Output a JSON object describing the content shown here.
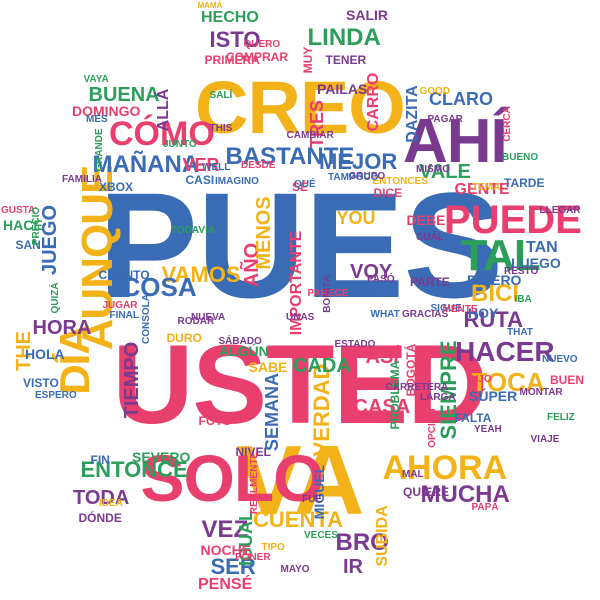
{
  "palette": {
    "blue": "#3a6bb5",
    "pink": "#e93f6e",
    "yellow": "#f2b218",
    "green": "#2b9e5a",
    "purple": "#7a3a8f"
  },
  "words": [
    {
      "text": "PUES",
      "color": "blue"
    },
    {
      "text": "USTED",
      "color": "pink"
    },
    {
      "text": "CREO",
      "color": "yellow"
    },
    {
      "text": "VA",
      "color": "yellow"
    },
    {
      "text": "SOLO",
      "color": "pink"
    },
    {
      "text": "AHÍ",
      "color": "purple"
    },
    {
      "text": "PUEDE",
      "color": "pink"
    },
    {
      "text": "TAL",
      "color": "green"
    },
    {
      "text": "CÓMO",
      "color": "pink"
    },
    {
      "text": "AUNQUE",
      "color": "yellow"
    },
    {
      "text": "DÍA",
      "color": "yellow"
    },
    {
      "text": "AHORA",
      "color": "yellow"
    },
    {
      "text": "HACER",
      "color": "purple"
    },
    {
      "text": "TOCA",
      "color": "yellow"
    },
    {
      "text": "SIEMPRE",
      "color": "green"
    },
    {
      "text": "BASTANTE",
      "color": "blue"
    },
    {
      "text": "MEJOR",
      "color": "blue"
    },
    {
      "text": "MAÑANA",
      "color": "blue"
    },
    {
      "text": "ENTONCE",
      "color": "green"
    },
    {
      "text": "MUCHA",
      "color": "purple"
    },
    {
      "text": "CUENTA",
      "color": "yellow"
    },
    {
      "text": "LINDA",
      "color": "green"
    },
    {
      "text": "ISTO",
      "color": "purple"
    },
    {
      "text": "HECHO",
      "color": "green"
    },
    {
      "text": "BUENA",
      "color": "green"
    },
    {
      "text": "JUEGO",
      "color": "blue"
    },
    {
      "text": "VAMOS",
      "color": "yellow"
    },
    {
      "text": "COSA",
      "color": "blue"
    },
    {
      "text": "HORA",
      "color": "purple"
    },
    {
      "text": "VERDAD",
      "color": "yellow"
    },
    {
      "text": "SEMANA",
      "color": "blue"
    },
    {
      "text": "TIEMPO",
      "color": "purple"
    },
    {
      "text": "VEZ",
      "color": "purple"
    },
    {
      "text": "BRO",
      "color": "purple"
    },
    {
      "text": "SER",
      "color": "blue"
    },
    {
      "text": "IR",
      "color": "purple"
    },
    {
      "text": "TODA",
      "color": "purple"
    },
    {
      "text": "VOY",
      "color": "purple"
    },
    {
      "text": "RUTA",
      "color": "purple"
    },
    {
      "text": "BICI",
      "color": "yellow"
    },
    {
      "text": "VALE",
      "color": "green"
    },
    {
      "text": "CLARO",
      "color": "blue"
    },
    {
      "text": "DAZITA",
      "color": "blue"
    },
    {
      "text": "CASA",
      "color": "pink"
    },
    {
      "text": "CADA",
      "color": "green"
    },
    {
      "text": "AÑO",
      "color": "pink"
    },
    {
      "text": "YOU",
      "color": "yellow"
    },
    {
      "text": "VER",
      "color": "pink"
    },
    {
      "text": "ALLÁ",
      "color": "purple"
    },
    {
      "text": "THE",
      "color": "yellow"
    },
    {
      "text": "IGUAL",
      "color": "green"
    },
    {
      "text": "SUBIDA",
      "color": "yellow"
    },
    {
      "text": "MENOS",
      "color": "yellow"
    },
    {
      "text": "ASÍ",
      "color": "pink"
    },
    {
      "text": "GENTE",
      "color": "pink"
    },
    {
      "text": "HOY",
      "color": "blue"
    },
    {
      "text": "SÚPER",
      "color": "blue"
    },
    {
      "text": "TAN",
      "color": "blue"
    },
    {
      "text": "DINERO",
      "color": "blue"
    },
    {
      "text": "MIGUEL",
      "color": "blue"
    },
    {
      "text": "TRES",
      "color": "pink"
    },
    {
      "text": "SALIR",
      "color": "purple"
    },
    {
      "text": "CARRO",
      "color": "pink"
    },
    {
      "text": "PAILAS",
      "color": "purple"
    },
    {
      "text": "IMPORTANTE",
      "color": "pink"
    },
    {
      "text": "DEBE",
      "color": "pink"
    },
    {
      "text": "LUEGO",
      "color": "blue"
    },
    {
      "text": "HACE",
      "color": "green"
    },
    {
      "text": "HOLA",
      "color": "blue"
    },
    {
      "text": "VISTO",
      "color": "blue"
    },
    {
      "text": "DOMINGO",
      "color": "pink"
    },
    {
      "text": "PENSÉ",
      "color": "pink"
    },
    {
      "text": "CASI",
      "color": "blue"
    },
    {
      "text": "XBOX",
      "color": "blue"
    },
    {
      "text": "SÉ",
      "color": "pink"
    },
    {
      "text": "QUIERE",
      "color": "purple"
    },
    {
      "text": "DICE",
      "color": "pink"
    },
    {
      "text": "FALTA",
      "color": "blue"
    },
    {
      "text": "SABE",
      "color": "yellow"
    },
    {
      "text": "ALGÚN",
      "color": "green"
    },
    {
      "text": "PARTE",
      "color": "purple"
    },
    {
      "text": "TARDE",
      "color": "blue"
    },
    {
      "text": "CUÁNTO",
      "color": "blue"
    },
    {
      "text": "DURO",
      "color": "yellow"
    },
    {
      "text": "FIN",
      "color": "blue"
    },
    {
      "text": "NOCHE",
      "color": "pink"
    },
    {
      "text": "GUSTA",
      "color": "pink"
    },
    {
      "text": "SAN",
      "color": "blue"
    },
    {
      "text": "DÓNDE",
      "color": "purple"
    },
    {
      "text": "BUEN",
      "color": "pink"
    },
    {
      "text": "SEVERO",
      "color": "green"
    },
    {
      "text": "MAMÁ",
      "color": "yellow"
    },
    {
      "text": "MISMO",
      "color": "purple"
    },
    {
      "text": "VIAJE",
      "color": "purple"
    },
    {
      "text": "BOGOTÁ",
      "color": "pink"
    },
    {
      "text": "PROBLEMA",
      "color": "green"
    },
    {
      "text": "ENTONCES",
      "color": "yellow"
    },
    {
      "text": "FOTO",
      "color": "pink"
    },
    {
      "text": "NIVEL",
      "color": "purple"
    },
    {
      "text": "MONTAR",
      "color": "purple"
    },
    {
      "text": "UNAS",
      "color": "purple"
    },
    {
      "text": "PAPÁ",
      "color": "pink"
    },
    {
      "text": "PRIMERA",
      "color": "pink"
    },
    {
      "text": "MAYO",
      "color": "purple"
    },
    {
      "text": "IBA",
      "color": "green"
    },
    {
      "text": "FELIZ",
      "color": "green"
    },
    {
      "text": "SIGUE",
      "color": "blue"
    },
    {
      "text": "MUY",
      "color": "pink"
    },
    {
      "text": "WHAT",
      "color": "blue"
    },
    {
      "text": "TENER",
      "color": "purple"
    },
    {
      "text": "COMPRAR",
      "color": "pink"
    },
    {
      "text": "GRUPO",
      "color": "purple"
    },
    {
      "text": "QUEDA",
      "color": "blue"
    },
    {
      "text": "RODAR",
      "color": "purple"
    },
    {
      "text": "LLEGAR",
      "color": "purple"
    },
    {
      "text": "YEAH",
      "color": "purple"
    },
    {
      "text": "SÁBADO",
      "color": "purple"
    },
    {
      "text": "NUEVA",
      "color": "purple"
    },
    {
      "text": "PRECIO",
      "color": "green"
    },
    {
      "text": "MES",
      "color": "blue"
    },
    {
      "text": "QUIZÁ",
      "color": "green"
    },
    {
      "text": "NUEVO",
      "color": "blue"
    },
    {
      "text": "FINAL",
      "color": "blue"
    },
    {
      "text": "FUE",
      "color": "purple"
    },
    {
      "text": "ESPERO",
      "color": "blue"
    },
    {
      "text": "TIPO",
      "color": "yellow"
    },
    {
      "text": "VECES",
      "color": "green"
    },
    {
      "text": "IDEA",
      "color": "yellow"
    },
    {
      "text": "RESTO",
      "color": "purple"
    },
    {
      "text": "QUERO",
      "color": "pink"
    },
    {
      "text": "PASÓ",
      "color": "purple"
    },
    {
      "text": "BUENO",
      "color": "green"
    },
    {
      "text": "TODAVÍA",
      "color": "green"
    },
    {
      "text": "CONSOLA",
      "color": "blue"
    },
    {
      "text": "PARECE",
      "color": "pink"
    },
    {
      "text": "CERCA",
      "color": "pink"
    },
    {
      "text": "THAT",
      "color": "blue"
    },
    {
      "text": "THIS",
      "color": "purple"
    },
    {
      "text": "JUGAR",
      "color": "pink"
    },
    {
      "text": "IMAGINO",
      "color": "blue"
    },
    {
      "text": "TAMPOCO",
      "color": "blue"
    },
    {
      "text": "CARRETERA",
      "color": "purple"
    },
    {
      "text": "ESTADO",
      "color": "purple"
    },
    {
      "text": "DIJO",
      "color": "pink"
    },
    {
      "text": "VAYA",
      "color": "green"
    },
    {
      "text": "PONER",
      "color": "pink"
    },
    {
      "text": "WELL",
      "color": "blue"
    },
    {
      "text": "SALÍ",
      "color": "green"
    },
    {
      "text": "LARGA",
      "color": "purple"
    },
    {
      "text": "MAL",
      "color": "purple"
    },
    {
      "text": "OPCIÓN",
      "color": "pink"
    },
    {
      "text": "REALMENTE",
      "color": "pink"
    },
    {
      "text": "BONITA",
      "color": "purple"
    },
    {
      "text": "CAMBIAR",
      "color": "purple"
    },
    {
      "text": "DESDE",
      "color": "pink"
    },
    {
      "text": "JUNTO",
      "color": "green"
    },
    {
      "text": "GRANDE",
      "color": "green"
    },
    {
      "text": "FAMILIA",
      "color": "purple"
    },
    {
      "text": "QUÉ",
      "color": "blue"
    },
    {
      "text": "CUÁL",
      "color": "purple"
    },
    {
      "text": "GRACIAS",
      "color": "purple"
    },
    {
      "text": "MENTE",
      "color": "pink"
    },
    {
      "text": "TEMA",
      "color": "yellow"
    },
    {
      "text": "GOOD",
      "color": "yellow"
    },
    {
      "text": "PAGAR",
      "color": "purple"
    },
    {
      "text": "HERMANO",
      "color": "purple"
    },
    {
      "text": "CIERTO",
      "color": "pink"
    }
  ]
}
